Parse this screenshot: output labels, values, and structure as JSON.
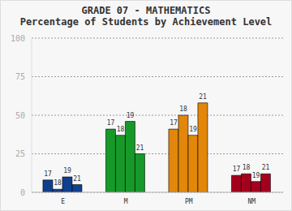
{
  "chart_data": {
    "type": "bar",
    "title": "GRADE 07 - MATHEMATICS",
    "subtitle": "Percentage of Students by Achievement Level",
    "categories": [
      "E",
      "M",
      "PM",
      "NM"
    ],
    "series": [
      {
        "name": "17",
        "values": [
          8,
          41,
          41,
          11
        ]
      },
      {
        "name": "18",
        "values": [
          2,
          37,
          50,
          12
        ]
      },
      {
        "name": "19",
        "values": [
          10,
          46,
          37,
          7
        ]
      },
      {
        "name": "21",
        "values": [
          5,
          25,
          58,
          12
        ]
      }
    ],
    "colors": [
      "#0f3f8f",
      "#17992a",
      "#e2870a",
      "#a4001e"
    ],
    "ylim": [
      0,
      100
    ],
    "yticks": [
      0,
      25,
      50,
      75,
      100
    ],
    "grid": true
  }
}
